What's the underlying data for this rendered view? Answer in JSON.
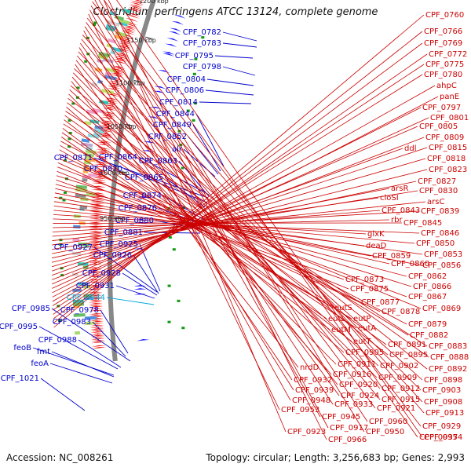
{
  "title": "Clostridium perfringens ATCC 13124, complete genome",
  "accession": "Accession: NC_008261",
  "topology": "Topology: circular; Length: 3,256,683 bp; Genes: 2,993",
  "colors": {
    "blue_labels": "#0000cc",
    "red_labels": "#cc0000",
    "highlight_label": "#00a8d8",
    "backbone": "#888888"
  },
  "ticks": [
    {
      "label": "950 kbp"
    },
    {
      "label": "1000 kbp"
    },
    {
      "label": "1050 kbp"
    },
    {
      "label": "1100 kbp"
    },
    {
      "label": "1150 kbp"
    },
    {
      "label": "1200 kbp"
    }
  ],
  "left_labels": [
    "CPF_0782",
    "CPF_0783",
    "CPF_0795",
    "CPF_0798",
    "CPF_0804",
    "CPF_0806",
    "CPF_0814",
    "CPF_0844",
    "CPF_0849",
    "CPF_0852",
    "alr",
    "CPF_0871",
    "CPF_0864",
    "CPF_0863",
    "CPF_0870",
    "CPF_0865",
    "CPF_0874",
    "CPF_0876",
    "CPF_0880",
    "CPF_0881",
    "CPF_0927",
    "CPF_0925",
    "CPF_0926",
    "CPF_0928",
    "CPF_0931",
    "CPF_0944",
    "CPF_0985",
    "CPF_0978",
    "CPF_0995",
    "CPF_0983",
    "CPF_0988",
    "feoB",
    "fmt",
    "feoA",
    "CPF_1021"
  ],
  "highlight_label": "CPF_0944",
  "right_labels": [
    "CPF_0760",
    "CPF_0766",
    "CPF_0769",
    "CPF_0772",
    "CPF_0775",
    "CPF_0780",
    "ahpC",
    "panE",
    "CPF_0797",
    "CPF_0801",
    "CPF_0805",
    "CPF_0809",
    "ddl",
    "CPF_0815",
    "CPF_0818",
    "CPF_0823",
    "CPF_0827",
    "arsR",
    "CPF_0830",
    "cloSI",
    "arsC",
    "CPF_0843",
    "CPF_0839",
    "rbr",
    "CPF_0845",
    "CPF_0846",
    "glxK",
    "CPF_0850",
    "deaD",
    "CPF_0853",
    "CPF_0859",
    "CPF_0856",
    "CPF_0860",
    "CPF_0862",
    "CPF_0873",
    "CPF_0866",
    "CPF_0875",
    "CPF_0867",
    "CPF_0877",
    "CPF_0869",
    "CPF_0878",
    "eutS",
    "eutP",
    "CPF_0879",
    "eutL",
    "eutA",
    "eutM",
    "CPF_0882",
    "eutT",
    "CPF_0891",
    "CPF_0883",
    "CPF_0905",
    "CPF_0895",
    "CPF_0888",
    "CPF_0911",
    "CPF_0902",
    "CPF_0892",
    "nrdD",
    "CPF_0916",
    "CPF_0909",
    "CPF_0898",
    "CPF_0932",
    "CPF_0920",
    "CPF_0912",
    "CPF_0903",
    "CPF_0939",
    "CPF_0924",
    "CPF_0915",
    "CPF_0908",
    "CPF_0948",
    "CPF_0933",
    "CPF_0921",
    "CPF_0913",
    "CPF_0953",
    "CPF_0945",
    "CPF_0960",
    "CPF_0929",
    "CPF_0917",
    "CPF_0950",
    "CPF_0937",
    "CPF_0923",
    "CPF_0966",
    "CPF_0954"
  ]
}
